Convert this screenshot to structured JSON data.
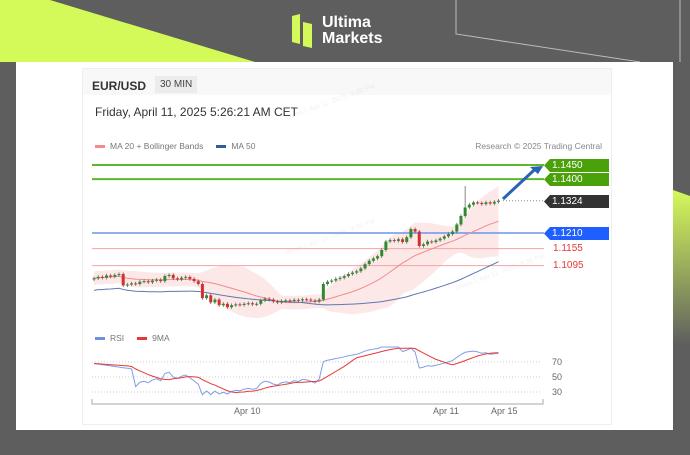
{
  "brand": {
    "line1": "Ultima",
    "line2": "Markets",
    "colors": {
      "lime": "#d4fa5a",
      "background": "#5e5e5e"
    }
  },
  "chart_header": {
    "symbol": "EUR/USD",
    "timeframe": "30 MIN",
    "datetime": "Friday, April 11, 2025 5:26:21 AM CET",
    "credit": "Research © 2025 Trading Central",
    "watermark": "Wena L Apr 11, 2025, 3:36 PM"
  },
  "chart_data": [
    {
      "type": "candlestick",
      "title": "EUR/USD",
      "legend": [
        {
          "name": "MA 20 + Bollinger Bands",
          "color": "#f28b8b"
        },
        {
          "name": "MA 50",
          "color": "#2f5d9e"
        }
      ],
      "legend_position": "top-left",
      "x_tick_labels": [
        "Apr 10",
        "Apr 11",
        "Apr 15"
      ],
      "closes": [
        1.105,
        1.1055,
        1.1052,
        1.106,
        1.1056,
        1.1062,
        1.1065,
        1.1025,
        1.1028,
        1.1032,
        1.103,
        1.1038,
        1.104,
        1.1036,
        1.1042,
        1.1045,
        1.104,
        1.1058,
        1.1062,
        1.105,
        1.1046,
        1.1052,
        1.1055,
        1.1048,
        1.104,
        1.103,
        1.098,
        1.099,
        1.0965,
        1.0975,
        1.0955,
        1.096,
        1.0948,
        1.0955,
        1.0958,
        1.0956,
        1.096,
        1.0962,
        1.0958,
        1.096,
        1.0972,
        1.0978,
        1.0975,
        1.0968,
        1.0965,
        1.097,
        1.0972,
        1.097,
        1.0974,
        1.0972,
        1.0976,
        1.0975,
        1.0972,
        1.0968,
        1.0975,
        1.103,
        1.1038,
        1.1042,
        1.1048,
        1.1052,
        1.1058,
        1.1065,
        1.107,
        1.1075,
        1.1085,
        1.11,
        1.1112,
        1.112,
        1.1128,
        1.115,
        1.118,
        1.1185,
        1.1182,
        1.1188,
        1.1178,
        1.1195,
        1.1224,
        1.1215,
        1.1164,
        1.117,
        1.118,
        1.1178,
        1.1184,
        1.119,
        1.1198,
        1.1206,
        1.1215,
        1.124,
        1.127,
        1.13,
        1.131,
        1.1318,
        1.1316,
        1.1312,
        1.1318,
        1.1314,
        1.132,
        1.1324
      ],
      "spike_high": 1.1376,
      "levels": [
        {
          "value": "1.1450",
          "kind": "resistance",
          "color": "#4aa10a"
        },
        {
          "value": "1.1400",
          "kind": "resistance",
          "color": "#4aa10a"
        },
        {
          "value": "1.1324",
          "kind": "last",
          "color": "#333333"
        },
        {
          "value": "1.1210",
          "kind": "pivot",
          "color": "#1f5fff"
        },
        {
          "value": "1.1155",
          "kind": "support",
          "color": "#e53935"
        },
        {
          "value": "1.1095",
          "kind": "support",
          "color": "#e53935"
        }
      ],
      "forecast_arrow": {
        "from": 1.1324,
        "to": 1.145,
        "color": "#2a62b5"
      }
    },
    {
      "type": "line",
      "legend": [
        {
          "name": "RSI",
          "color": "#6f8fe0"
        },
        {
          "name": "9MA",
          "color": "#e53935"
        }
      ],
      "y_tick_labels": [
        "70",
        "50",
        "30"
      ],
      "ylim": [
        20,
        80
      ]
    }
  ]
}
